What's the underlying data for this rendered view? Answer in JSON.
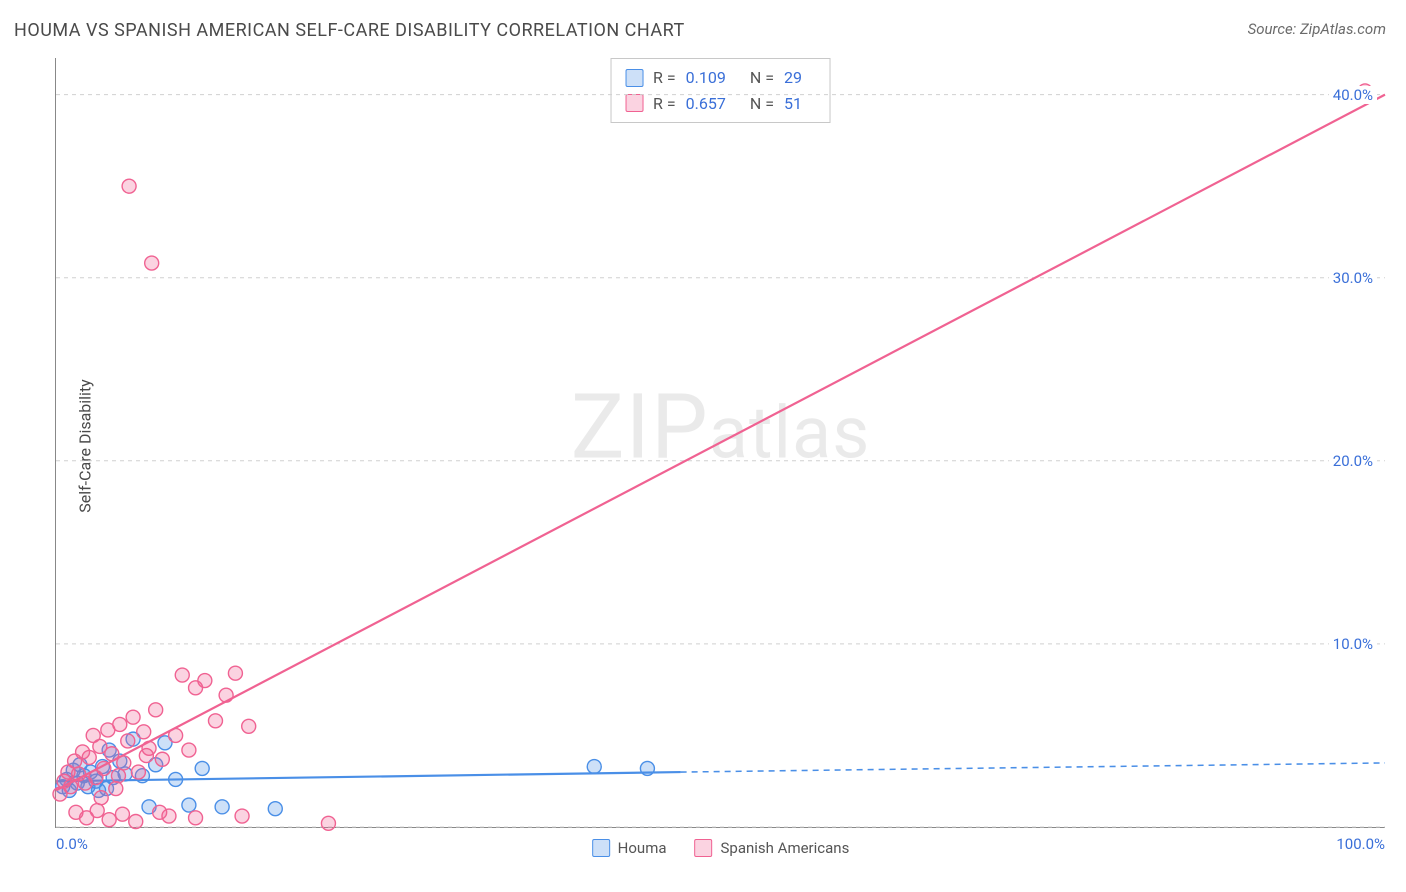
{
  "title": "HOUMA VS SPANISH AMERICAN SELF-CARE DISABILITY CORRELATION CHART",
  "source": "Source: ZipAtlas.com",
  "watermark": "ZIPatlas",
  "ylabel": "Self-Care Disability",
  "chart": {
    "type": "scatter-with-regression",
    "xlim": [
      0,
      100
    ],
    "ylim": [
      0,
      42
    ],
    "xtick_labels": [
      "0.0%",
      "100.0%"
    ],
    "ytick_positions": [
      10,
      20,
      30,
      40
    ],
    "ytick_labels": [
      "10.0%",
      "20.0%",
      "30.0%",
      "40.0%"
    ],
    "grid_h_positions": [
      0,
      10,
      20,
      30,
      40
    ],
    "grid_color": "#d0d0d0",
    "background_color": "#ffffff",
    "axis_color": "#888888",
    "tick_label_color": "#3a6fd8",
    "series": [
      {
        "name": "Houma",
        "color": "#4a8fe7",
        "fill": "rgba(74,143,231,0.28)",
        "stroke": "#4a8fe7",
        "R": "0.109",
        "N": "29",
        "regression": {
          "x1": 0,
          "y1": 2.5,
          "x2": 47,
          "y2": 3.0,
          "dash_from_x": 47,
          "dash_to_x": 100,
          "dash_to_y": 3.5
        },
        "points": [
          [
            0.5,
            2.2
          ],
          [
            0.8,
            2.6
          ],
          [
            1.0,
            2.0
          ],
          [
            1.3,
            3.1
          ],
          [
            1.6,
            2.4
          ],
          [
            1.8,
            3.4
          ],
          [
            2.1,
            2.8
          ],
          [
            2.4,
            2.2
          ],
          [
            2.6,
            3.0
          ],
          [
            3.0,
            2.5
          ],
          [
            3.2,
            2.0
          ],
          [
            3.5,
            3.3
          ],
          [
            4.0,
            4.2
          ],
          [
            4.3,
            2.7
          ],
          [
            4.8,
            3.6
          ],
          [
            5.2,
            2.9
          ],
          [
            5.8,
            4.8
          ],
          [
            6.5,
            2.8
          ],
          [
            7.0,
            1.1
          ],
          [
            7.5,
            3.4
          ],
          [
            8.2,
            4.6
          ],
          [
            9.0,
            2.6
          ],
          [
            10.0,
            1.2
          ],
          [
            11.0,
            3.2
          ],
          [
            12.5,
            1.1
          ],
          [
            16.5,
            1.0
          ],
          [
            40.5,
            3.3
          ],
          [
            44.5,
            3.2
          ],
          [
            3.8,
            2.1
          ]
        ]
      },
      {
        "name": "Spanish Americans",
        "color": "#f06292",
        "fill": "rgba(240,98,146,0.28)",
        "stroke": "#f06292",
        "R": "0.657",
        "N": "51",
        "regression": {
          "x1": 0,
          "y1": 2.0,
          "x2": 100,
          "y2": 40.0
        },
        "points": [
          [
            0.3,
            1.8
          ],
          [
            0.6,
            2.5
          ],
          [
            0.9,
            3.0
          ],
          [
            1.1,
            2.2
          ],
          [
            1.4,
            3.6
          ],
          [
            1.7,
            2.9
          ],
          [
            2.0,
            4.1
          ],
          [
            2.2,
            2.4
          ],
          [
            2.5,
            3.8
          ],
          [
            2.8,
            5.0
          ],
          [
            3.0,
            2.7
          ],
          [
            3.3,
            4.4
          ],
          [
            3.6,
            3.2
          ],
          [
            3.9,
            5.3
          ],
          [
            4.2,
            4.0
          ],
          [
            4.5,
            2.1
          ],
          [
            4.8,
            5.6
          ],
          [
            5.1,
            3.5
          ],
          [
            5.4,
            4.7
          ],
          [
            5.8,
            6.0
          ],
          [
            6.2,
            3.0
          ],
          [
            6.6,
            5.2
          ],
          [
            7.0,
            4.3
          ],
          [
            7.5,
            6.4
          ],
          [
            8.0,
            3.7
          ],
          [
            8.5,
            0.6
          ],
          [
            9.0,
            5.0
          ],
          [
            9.5,
            8.3
          ],
          [
            10.0,
            4.2
          ],
          [
            10.5,
            7.6
          ],
          [
            11.2,
            8.0
          ],
          [
            12.0,
            5.8
          ],
          [
            12.8,
            7.2
          ],
          [
            13.5,
            8.4
          ],
          [
            14.5,
            5.5
          ],
          [
            1.5,
            0.8
          ],
          [
            2.3,
            0.5
          ],
          [
            3.1,
            0.9
          ],
          [
            4.0,
            0.4
          ],
          [
            5.0,
            0.7
          ],
          [
            6.0,
            0.3
          ],
          [
            7.8,
            0.8
          ],
          [
            10.5,
            0.5
          ],
          [
            14.0,
            0.6
          ],
          [
            20.5,
            0.2
          ],
          [
            7.2,
            30.8
          ],
          [
            5.5,
            35.0
          ],
          [
            98.5,
            40.2
          ],
          [
            3.4,
            1.6
          ],
          [
            4.7,
            2.8
          ],
          [
            6.8,
            3.9
          ]
        ]
      }
    ],
    "legend_bottom": [
      {
        "label": "Houma",
        "swatch_fill": "rgba(74,143,231,0.28)",
        "swatch_stroke": "#4a8fe7"
      },
      {
        "label": "Spanish Americans",
        "swatch_fill": "rgba(240,98,146,0.28)",
        "swatch_stroke": "#f06292"
      }
    ],
    "marker_radius": 7,
    "marker_stroke_width": 1.4,
    "line_width": 2.2
  }
}
